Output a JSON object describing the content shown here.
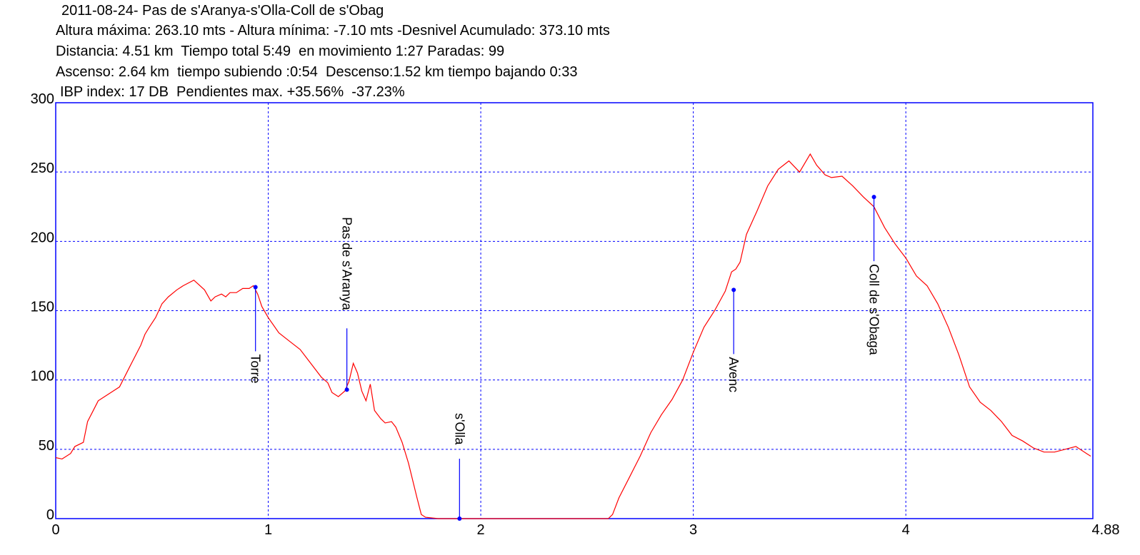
{
  "header": {
    "title": "2011-08-24- Pas de s'Aranya-s'Olla-Coll de s'Obag",
    "line1": "Altura máxima: 263.10 mts - Altura mínima: -7.10 mts -Desnivel Acumulado: 373.10 mts",
    "line2": "Distancia: 4.51 km  Tiempo total 5:49  en movimiento 1:27 Paradas: 99",
    "line3": "Ascenso: 2.64 km  tiempo subiendo :0:54  Descenso:1.52 km tiempo bajando 0:33",
    "line4": "IBP index: 17 DB  Pendientes max. +35.56%  -37.23%"
  },
  "chart_data": {
    "type": "line",
    "xlim": [
      0,
      4.88
    ],
    "ylim": [
      0,
      300
    ],
    "x_ticks": [
      0,
      1,
      2,
      3,
      4,
      4.88
    ],
    "x_tick_labels": [
      "0",
      "1",
      "2",
      "3",
      "4",
      "4.88"
    ],
    "y_ticks": [
      0,
      50,
      100,
      150,
      200,
      250,
      300
    ],
    "y_tick_labels": [
      "0",
      "50",
      "100",
      "150",
      "200",
      "250",
      "300"
    ],
    "grid": true,
    "colors": {
      "profile": "#ff0000",
      "axes": "#0000ff",
      "grid": "#0000ff",
      "waypoint": "#0000ff"
    },
    "series": [
      {
        "x": [
          0,
          0.03,
          0.07,
          0.09,
          0.13,
          0.15,
          0.17,
          0.2,
          0.23,
          0.27,
          0.3,
          0.35,
          0.4,
          0.42,
          0.44,
          0.47,
          0.5,
          0.53,
          0.57,
          0.6,
          0.65,
          0.7,
          0.73,
          0.75,
          0.78,
          0.8,
          0.82,
          0.85,
          0.88,
          0.91,
          0.93,
          0.95,
          0.97,
          1.0,
          1.05,
          1.1,
          1.15,
          1.2,
          1.25,
          1.28,
          1.3,
          1.33,
          1.36,
          1.38,
          1.4,
          1.42,
          1.44,
          1.46,
          1.48,
          1.5,
          1.53,
          1.55,
          1.58,
          1.6,
          1.63,
          1.66,
          1.7,
          1.72,
          1.74,
          1.8,
          1.9,
          2.0,
          2.2,
          2.4,
          2.5,
          2.6,
          2.62,
          2.65,
          2.7,
          2.75,
          2.8,
          2.85,
          2.9,
          2.95,
          3.0,
          3.05,
          3.1,
          3.15,
          3.18,
          3.2,
          3.22,
          3.25,
          3.3,
          3.35,
          3.4,
          3.45,
          3.5,
          3.55,
          3.58,
          3.62,
          3.65,
          3.7,
          3.75,
          3.8,
          3.85,
          3.9,
          3.95,
          4.0,
          4.05,
          4.1,
          4.15,
          4.2,
          4.25,
          4.3,
          4.35,
          4.4,
          4.45,
          4.5,
          4.55,
          4.6,
          4.65,
          4.7,
          4.75,
          4.8,
          4.85,
          4.87
        ],
        "y": [
          44,
          43,
          47,
          52,
          55,
          70,
          76,
          85,
          88,
          92,
          95,
          110,
          125,
          133,
          138,
          145,
          155,
          160,
          165,
          168,
          172,
          165,
          157,
          160,
          162,
          160,
          163,
          163,
          166,
          166,
          168,
          162,
          153,
          145,
          134,
          128,
          122,
          112,
          102,
          98,
          91,
          88,
          92,
          99,
          112,
          105,
          92,
          85,
          97,
          78,
          72,
          69,
          70,
          66,
          55,
          40,
          15,
          3,
          1,
          0,
          0,
          0,
          0,
          0,
          0,
          0,
          3,
          15,
          30,
          45,
          62,
          75,
          86,
          100,
          120,
          138,
          150,
          164,
          178,
          180,
          185,
          205,
          222,
          240,
          252,
          258,
          250,
          263,
          255,
          248,
          246,
          247,
          240,
          232,
          225,
          210,
          198,
          188,
          175,
          168,
          155,
          138,
          118,
          95,
          84,
          78,
          70,
          60,
          56,
          51,
          48,
          48,
          50,
          52,
          47,
          45
        ]
      }
    ],
    "waypoints": [
      {
        "name": "Torre",
        "x": 0.94,
        "y": 167
      },
      {
        "name": "Pas de s'Aranya",
        "x": 1.37,
        "y": 93
      },
      {
        "name": "s'Olla",
        "x": 1.9,
        "y": 0
      },
      {
        "name": "Avenc",
        "x": 3.19,
        "y": 165
      },
      {
        "name": "Coll de s'Obaga",
        "x": 3.85,
        "y": 232
      }
    ]
  }
}
